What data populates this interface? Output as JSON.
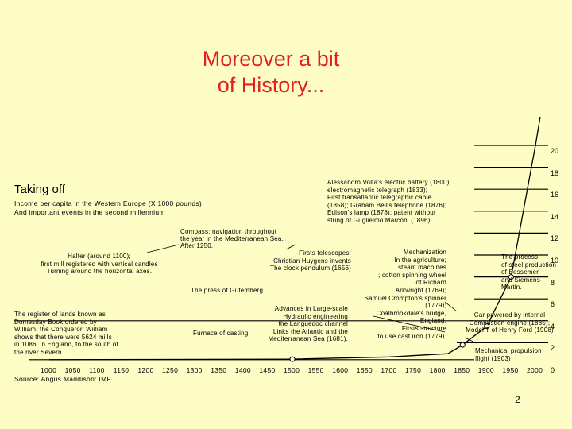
{
  "title_line1": "Moreover a bit",
  "title_line2": "of History...",
  "chart_data": {
    "type": "line",
    "title": "Taking off",
    "subtitle_lines": [
      "Income per capita in the Western Europe (X 1000 pounds)",
      "And important events in the second millennium"
    ],
    "xlabel": "",
    "ylabel": "",
    "x_ticks": [
      "1000",
      "1050",
      "1100",
      "1150",
      "1200",
      "1250",
      "1300",
      "1350",
      "1400",
      "1450",
      "1500",
      "1550",
      "1600",
      "1650",
      "1700",
      "1750",
      "1800",
      "1850",
      "1900",
      "1950",
      "2000"
    ],
    "y_ticks": [
      "0",
      "2",
      "4",
      "6",
      "8",
      "10",
      "12",
      "14",
      "16",
      "18",
      "20"
    ],
    "ylim": [
      0,
      20
    ],
    "series": [
      {
        "x": [
          1000,
          1500,
          1700,
          1820,
          1850,
          1900,
          1950,
          2000
        ],
        "y": [
          0.45,
          0.5,
          0.7,
          1.0,
          1.8,
          3.5,
          8.0,
          20.0
        ]
      }
    ],
    "source": "Source: Angus Maddison: IMF"
  },
  "annotations": {
    "halter": [
      "Halter (around 1100);",
      "first mill registered with vertical candles",
      "Turning around the horizontal axes."
    ],
    "domesday": [
      "The register of lands known as",
      "Domesday Book ordered by",
      "William, the Conqueror. William",
      "shows that there were 5624 mills",
      "in 1086, in England, to the south of",
      "the river Severn."
    ],
    "compass": [
      "Compass: navigation throughout",
      "the year in the Mediterranean Sea.",
      "After 1250."
    ],
    "press": "The press of Gutemberg",
    "furnace": "Furnace of casting",
    "telescopes": [
      "Firsts telescopes:",
      "Christian Huygens invents",
      "The clock pendulum (1656)"
    ],
    "hydraulic": [
      "Advances in Large-scale",
      "Hydraulic engineering",
      "the Languedoc channel",
      "Links the Atlantic and the",
      "Mediterranean Sea (1681)."
    ],
    "volta": [
      "Alessandro Volta's electric battery (1800);",
      "electromagnetic telegraph (1833);",
      "First transatlantic telegraphic cable",
      "(1858); Graham Bell's telephone (1876);",
      "Edison's lamp (1878); patent without",
      "string of Guglielmo Marconi (1896)."
    ],
    "mechanization": [
      "Mechanization",
      "In the agriculture;",
      "steam machines",
      "; cotton spinning wheel",
      "of Richard",
      "Arkwright (1769);",
      "Samuel Crompton's spinner",
      "(1779);",
      "Coalbrookdale's bridge,",
      "England,",
      "Firsts structure",
      "to use cast iron (1779)."
    ],
    "bessemer": [
      "The process",
      "of steel production",
      "of Bessemer",
      "and Siemens-",
      "Martin."
    ],
    "car": [
      "Car powered by internal",
      "Combustion engine (1885);",
      "Model T of Henry Ford (1908)"
    ],
    "mechanical": [
      "Mechanical propulsion",
      "flight (1903)"
    ]
  },
  "page_number": "2"
}
